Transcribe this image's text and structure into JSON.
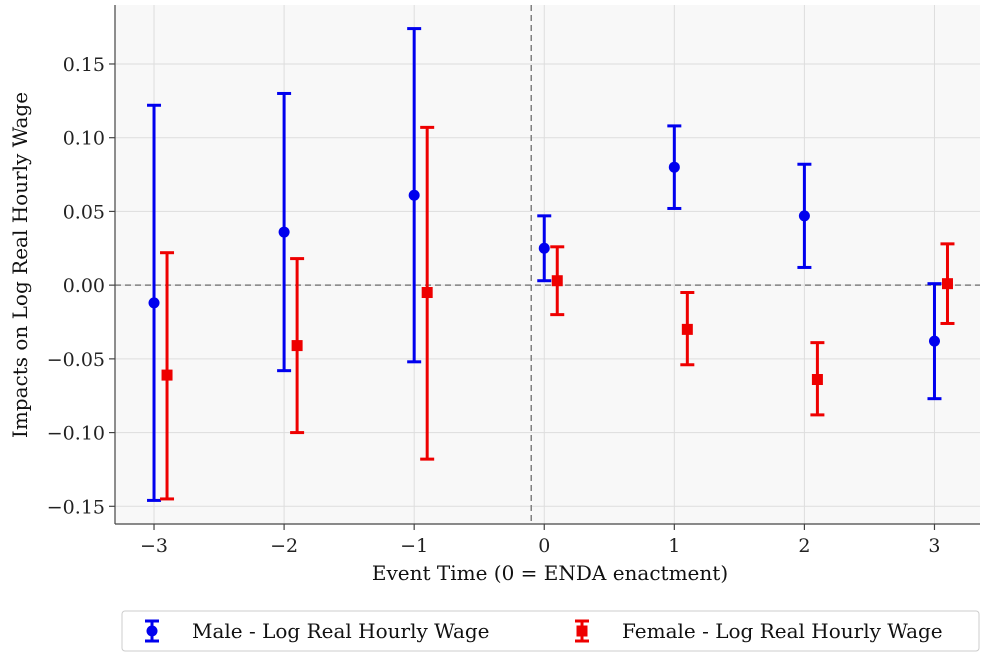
{
  "chart_data": {
    "type": "errorbar",
    "xlabel": "Event Time (0 = ENDA enactment)",
    "ylabel": "Impacts on Log Real Hourly Wage",
    "xlim": [
      -3.3,
      3.35
    ],
    "ylim": [
      -0.162,
      0.19
    ],
    "x_ticks": [
      -3,
      -2,
      -1,
      0,
      1,
      2,
      3
    ],
    "x_tick_labels": [
      "−3",
      "−2",
      "−1",
      "0",
      "1",
      "2",
      "3"
    ],
    "y_ticks": [
      -0.15,
      -0.1,
      -0.05,
      0.0,
      0.05,
      0.1,
      0.15
    ],
    "y_tick_labels": [
      "−0.15",
      "−0.10",
      "−0.05",
      "0.00",
      "0.05",
      "0.10",
      "0.15"
    ],
    "grid": true,
    "reference_lines": {
      "horizontal_y": 0.0,
      "vertical_x": -0.1
    },
    "legend_position": "bottom-center, below plot",
    "series": [
      {
        "name": "Male - Log Real Hourly Wage",
        "color": "#0000ee",
        "marker": "circle",
        "x": [
          -3,
          -2,
          -1,
          0,
          1,
          2,
          3
        ],
        "y": [
          -0.012,
          0.036,
          0.061,
          0.025,
          0.08,
          0.047,
          -0.038
        ],
        "lower": [
          -0.146,
          -0.058,
          -0.052,
          0.003,
          0.052,
          0.012,
          -0.077
        ],
        "upper": [
          0.122,
          0.13,
          0.174,
          0.047,
          0.108,
          0.082,
          0.001
        ]
      },
      {
        "name": "Female - Log Real Hourly Wage",
        "color": "#ee0000",
        "marker": "square",
        "x": [
          -2.9,
          -1.9,
          -0.9,
          0.1,
          1.1,
          2.1,
          3.1
        ],
        "y": [
          -0.061,
          -0.041,
          -0.005,
          0.003,
          -0.03,
          -0.064,
          0.001
        ],
        "lower": [
          -0.145,
          -0.1,
          -0.118,
          -0.02,
          -0.054,
          -0.088,
          -0.026
        ],
        "upper": [
          0.022,
          0.018,
          0.107,
          0.026,
          -0.005,
          -0.039,
          0.028
        ]
      }
    ]
  }
}
